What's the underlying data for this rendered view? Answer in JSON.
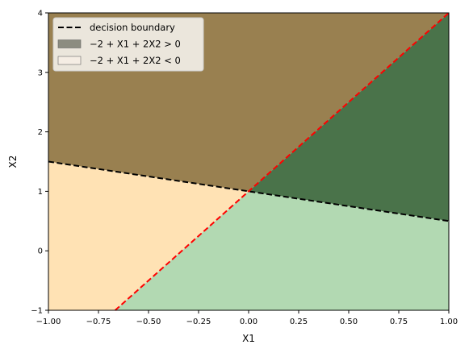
{
  "chart_data": {
    "type": "area",
    "xlabel": "X1",
    "ylabel": "X2",
    "xlim": [
      -1.0,
      1.0
    ],
    "ylim": [
      -1,
      4
    ],
    "xticks": [
      "−1.00",
      "−0.75",
      "−0.50",
      "−0.25",
      "0.00",
      "0.25",
      "0.50",
      "0.75",
      "1.00"
    ],
    "xtick_values": [
      -1.0,
      -0.75,
      -0.5,
      -0.25,
      0.0,
      0.25,
      0.5,
      0.75,
      1.0
    ],
    "yticks": [
      "−1",
      "0",
      "1",
      "2",
      "3",
      "4"
    ],
    "ytick_values": [
      -1,
      0,
      1,
      2,
      3,
      4
    ],
    "lines": [
      {
        "name": "decision boundary",
        "style": "dashed",
        "color": "#000000",
        "x": [
          -1.0,
          1.0
        ],
        "y": [
          1.5,
          0.5
        ]
      },
      {
        "style": "dashed",
        "color": "#ff0000",
        "x": [
          -0.6667,
          1.0
        ],
        "y": [
          -1.0,
          4.0
        ]
      }
    ],
    "regions": [
      {
        "name": "−2 + X1 + 2X2 > 0",
        "color": "#998050",
        "side": "above black, left of red"
      },
      {
        "color": "#4a734a",
        "side": "above black, right of red"
      },
      {
        "name": "−2 + X1 + 2X2 < 0",
        "color": "#ffe2b4",
        "side": "below black, left of red"
      },
      {
        "color": "#b2d9b2",
        "side": "below black, right of red"
      }
    ],
    "legend": {
      "placement": "top-left",
      "entries": [
        {
          "label": "decision boundary",
          "kind": "dashed-line",
          "color": "#000000"
        },
        {
          "label": "−2 + X1 + 2X2 > 0",
          "kind": "patch",
          "color": "#8c8c80"
        },
        {
          "label": "−2 + X1 + 2X2 < 0",
          "kind": "patch",
          "color": "#f5ede4"
        }
      ]
    },
    "grid": false
  }
}
